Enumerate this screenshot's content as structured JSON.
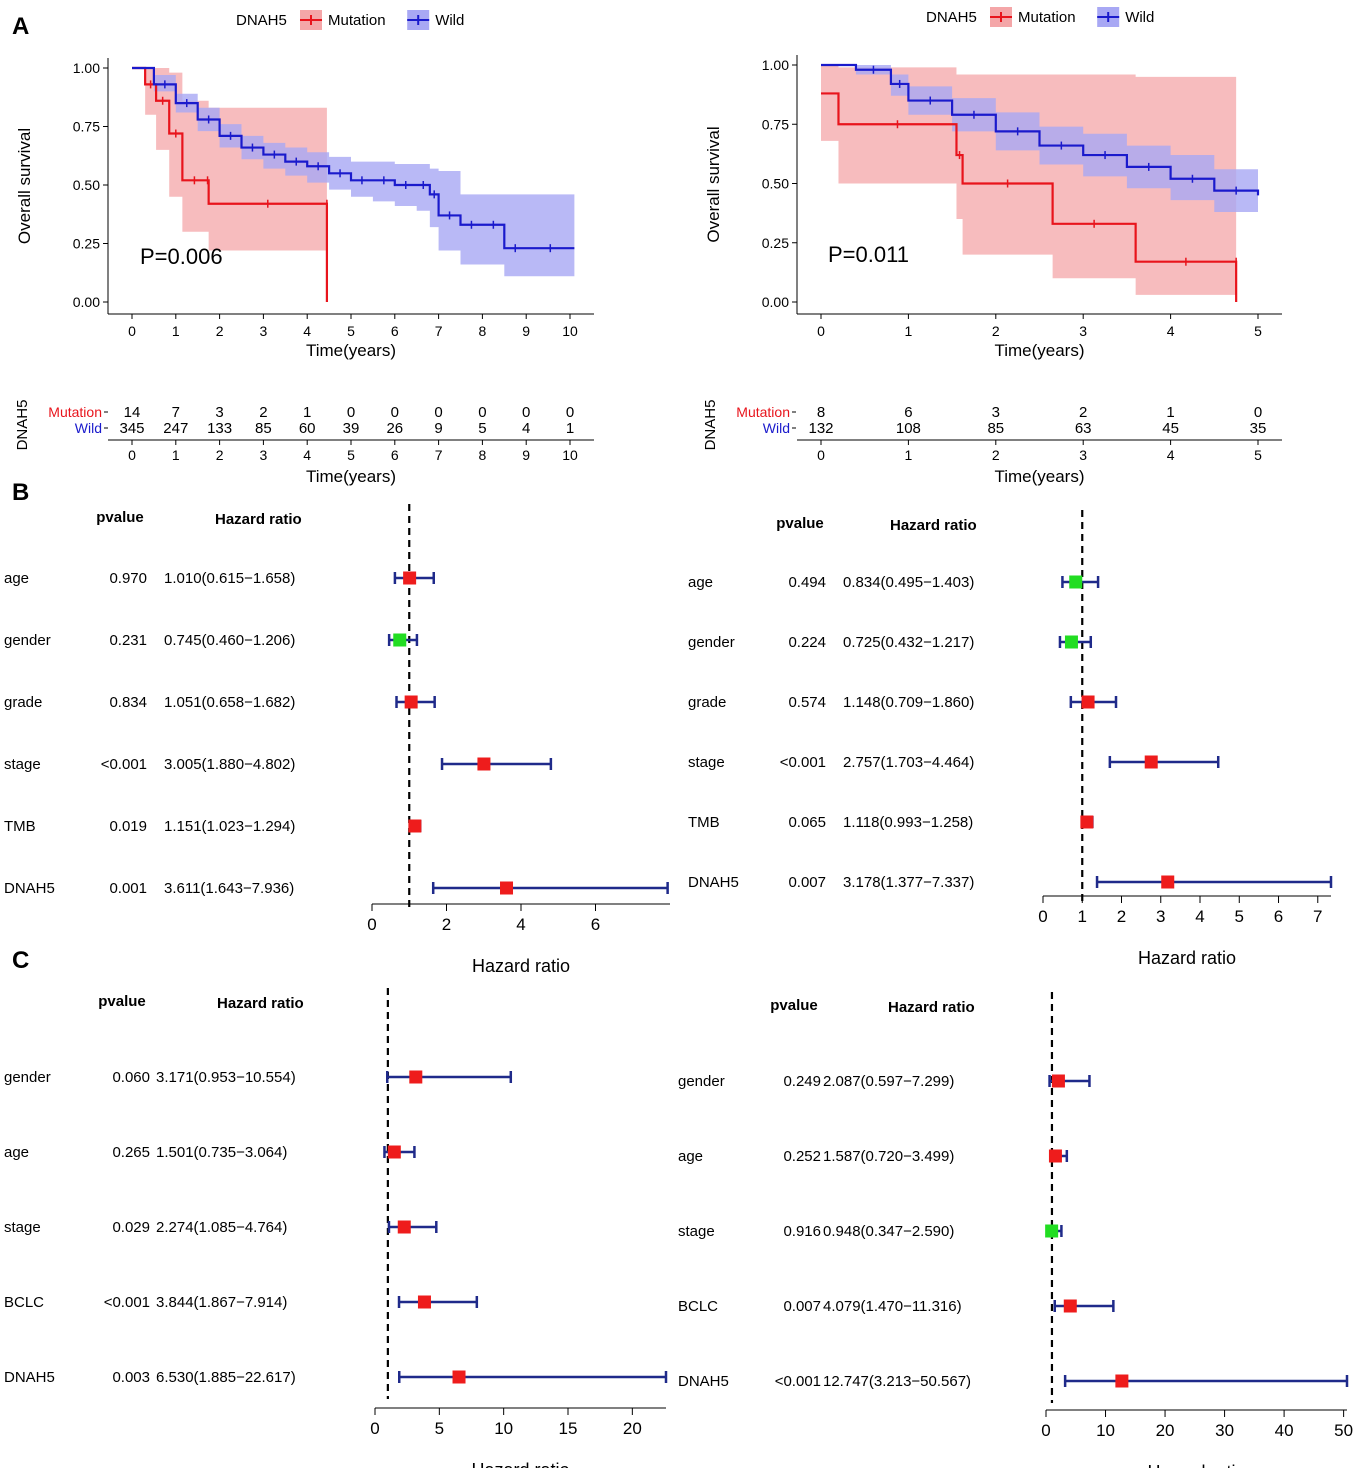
{
  "panel_labels": [
    "A",
    "B",
    "C"
  ],
  "colors": {
    "mutation": "#e8141c",
    "wild": "#1a1acc",
    "mutation_band": "#f4a6a8",
    "wild_band": "#a8a8f4",
    "forest_line": "#1f2a8a",
    "hr_high": "#ee1c1c",
    "hr_low": "#22dd22"
  },
  "chart_data": [
    {
      "type": "line",
      "id": "km_left",
      "gene": "DNAH5",
      "legend": [
        "Mutation",
        "Wild"
      ],
      "ylabel": "Overall survival",
      "xlabel": "Time(years)",
      "xlim": [
        0,
        10
      ],
      "ylim": [
        0,
        1
      ],
      "xticks": [
        "0",
        "1",
        "2",
        "3",
        "4",
        "5",
        "6",
        "7",
        "8",
        "9",
        "10"
      ],
      "yticks": [
        "0.00",
        "0.25",
        "0.50",
        "0.75",
        "1.00"
      ],
      "pvalue": "P=0.006",
      "series": [
        {
          "name": "Mutation",
          "x": [
            0,
            0.3,
            0.55,
            0.85,
            1.15,
            1.7,
            1.75,
            4.45,
            4.45
          ],
          "y": [
            1.0,
            0.93,
            0.86,
            0.72,
            0.52,
            0.52,
            0.42,
            0.42,
            0.0
          ],
          "lower": [
            1.0,
            0.8,
            0.65,
            0.45,
            0.3,
            0.3,
            0.22,
            0.22,
            0.0
          ],
          "upper": [
            1.0,
            1.0,
            1.0,
            0.98,
            0.86,
            0.86,
            0.83,
            0.83,
            0.0
          ]
        },
        {
          "name": "Wild",
          "x": [
            0,
            0.5,
            1,
            1.5,
            2,
            2.5,
            3,
            3.5,
            4,
            4.5,
            5,
            5.5,
            6,
            6.5,
            6.8,
            7,
            7.5,
            8,
            8.5,
            9,
            10.1
          ],
          "y": [
            1.0,
            0.93,
            0.85,
            0.78,
            0.71,
            0.66,
            0.63,
            0.6,
            0.58,
            0.55,
            0.52,
            0.52,
            0.5,
            0.5,
            0.46,
            0.37,
            0.33,
            0.33,
            0.23,
            0.23,
            0.23
          ],
          "lower": [
            1.0,
            0.9,
            0.81,
            0.73,
            0.66,
            0.61,
            0.57,
            0.54,
            0.51,
            0.48,
            0.45,
            0.43,
            0.41,
            0.39,
            0.32,
            0.22,
            0.16,
            0.16,
            0.11,
            0.11,
            0.11
          ],
          "upper": [
            1.0,
            0.97,
            0.89,
            0.83,
            0.76,
            0.71,
            0.68,
            0.66,
            0.64,
            0.62,
            0.6,
            0.6,
            0.59,
            0.59,
            0.57,
            0.56,
            0.46,
            0.46,
            0.46,
            0.46,
            0.46
          ]
        }
      ],
      "risk_table": {
        "title": "DNAH5",
        "rows": [
          {
            "name": "Mutation",
            "values": [
              "14",
              "7",
              "3",
              "2",
              "1",
              "0",
              "0",
              "0",
              "0",
              "0",
              "0"
            ]
          },
          {
            "name": "Wild",
            "values": [
              "345",
              "247",
              "133",
              "85",
              "60",
              "39",
              "26",
              "9",
              "5",
              "4",
              "1"
            ]
          }
        ],
        "xlabel": "Time(years)",
        "xticks": [
          "0",
          "1",
          "2",
          "3",
          "4",
          "5",
          "6",
          "7",
          "8",
          "9",
          "10"
        ]
      }
    },
    {
      "type": "line",
      "id": "km_right",
      "gene": "DNAH5",
      "legend": [
        "Mutation",
        "Wild"
      ],
      "ylabel": "Overall survival",
      "xlabel": "Time(years)",
      "xlim": [
        0,
        5
      ],
      "ylim": [
        0,
        1
      ],
      "xticks": [
        "0",
        "1",
        "2",
        "3",
        "4",
        "5"
      ],
      "yticks": [
        "0.00",
        "0.25",
        "0.50",
        "0.75",
        "1.00"
      ],
      "pvalue": "P=0.011",
      "series": [
        {
          "name": "Mutation",
          "x": [
            0,
            0.2,
            1.55,
            1.62,
            2.65,
            3.6,
            4.75,
            4.75
          ],
          "y": [
            0.88,
            0.75,
            0.62,
            0.5,
            0.33,
            0.17,
            0.17,
            0.0
          ],
          "lower": [
            0.68,
            0.5,
            0.35,
            0.2,
            0.1,
            0.03,
            0.03,
            0.0
          ],
          "upper": [
            1.0,
            0.99,
            0.96,
            0.96,
            0.96,
            0.95,
            0.95,
            0.0
          ]
        },
        {
          "name": "Wild",
          "x": [
            0,
            0.4,
            0.8,
            1,
            1.5,
            2,
            2.5,
            3,
            3.5,
            4,
            4.5,
            5
          ],
          "y": [
            1.0,
            0.98,
            0.92,
            0.85,
            0.79,
            0.72,
            0.66,
            0.62,
            0.57,
            0.52,
            0.47,
            0.45
          ],
          "lower": [
            1.0,
            0.96,
            0.87,
            0.79,
            0.72,
            0.64,
            0.58,
            0.53,
            0.48,
            0.43,
            0.38,
            0.38
          ],
          "upper": [
            1.0,
            1.0,
            0.96,
            0.91,
            0.86,
            0.8,
            0.74,
            0.71,
            0.66,
            0.62,
            0.56,
            0.56
          ]
        }
      ],
      "risk_table": {
        "title": "DNAH5",
        "rows": [
          {
            "name": "Mutation",
            "values": [
              "8",
              "6",
              "3",
              "2",
              "1",
              "0"
            ]
          },
          {
            "name": "Wild",
            "values": [
              "132",
              "108",
              "85",
              "63",
              "45",
              "35"
            ]
          }
        ],
        "xlabel": "Time(years)",
        "xticks": [
          "0",
          "1",
          "2",
          "3",
          "4",
          "5"
        ]
      }
    },
    {
      "type": "forest",
      "id": "forest_B_left",
      "header_pvalue": "pvalue",
      "header_hr": "Hazard ratio",
      "xlabel": "Hazard ratio",
      "ref": 1,
      "xlim": [
        0,
        8
      ],
      "xticks": [
        0,
        2,
        4,
        6
      ],
      "rows": [
        {
          "label": "age",
          "pvalue": "0.970",
          "hr_text": "1.010(0.615−1.658)",
          "hr": 1.01,
          "lo": 0.615,
          "hi": 1.658
        },
        {
          "label": "gender",
          "pvalue": "0.231",
          "hr_text": "0.745(0.460−1.206)",
          "hr": 0.745,
          "lo": 0.46,
          "hi": 1.206
        },
        {
          "label": "grade",
          "pvalue": "0.834",
          "hr_text": "1.051(0.658−1.682)",
          "hr": 1.051,
          "lo": 0.658,
          "hi": 1.682
        },
        {
          "label": "stage",
          "pvalue": "<0.001",
          "hr_text": "3.005(1.880−4.802)",
          "hr": 3.005,
          "lo": 1.88,
          "hi": 4.802
        },
        {
          "label": "TMB",
          "pvalue": "0.019",
          "hr_text": "1.151(1.023−1.294)",
          "hr": 1.151,
          "lo": 1.023,
          "hi": 1.294
        },
        {
          "label": "DNAH5",
          "pvalue": "0.001",
          "hr_text": "3.611(1.643−7.936)",
          "hr": 3.611,
          "lo": 1.643,
          "hi": 7.936
        }
      ]
    },
    {
      "type": "forest",
      "id": "forest_B_right",
      "header_pvalue": "pvalue",
      "header_hr": "Hazard ratio",
      "xlabel": "Hazard ratio",
      "ref": 1,
      "xlim": [
        0,
        7.337
      ],
      "xticks": [
        0,
        1,
        2,
        3,
        4,
        5,
        6,
        7
      ],
      "rows": [
        {
          "label": "age",
          "pvalue": "0.494",
          "hr_text": "0.834(0.495−1.403)",
          "hr": 0.834,
          "lo": 0.495,
          "hi": 1.403
        },
        {
          "label": "gender",
          "pvalue": "0.224",
          "hr_text": "0.725(0.432−1.217)",
          "hr": 0.725,
          "lo": 0.432,
          "hi": 1.217
        },
        {
          "label": "grade",
          "pvalue": "0.574",
          "hr_text": "1.148(0.709−1.860)",
          "hr": 1.148,
          "lo": 0.709,
          "hi": 1.86
        },
        {
          "label": "stage",
          "pvalue": "<0.001",
          "hr_text": "2.757(1.703−4.464)",
          "hr": 2.757,
          "lo": 1.703,
          "hi": 4.464
        },
        {
          "label": "TMB",
          "pvalue": "0.065",
          "hr_text": "1.118(0.993−1.258)",
          "hr": 1.118,
          "lo": 0.993,
          "hi": 1.258
        },
        {
          "label": "DNAH5",
          "pvalue": "0.007",
          "hr_text": "3.178(1.377−7.337)",
          "hr": 3.178,
          "lo": 1.377,
          "hi": 7.337
        }
      ]
    },
    {
      "type": "forest",
      "id": "forest_C_left",
      "header_pvalue": "pvalue",
      "header_hr": "Hazard ratio",
      "xlabel": "Hazard ratio",
      "ref": 1,
      "xlim": [
        0,
        22.617
      ],
      "xticks": [
        0,
        5,
        10,
        15,
        20
      ],
      "rows": [
        {
          "label": "gender",
          "pvalue": "0.060",
          "hr_text": "3.171(0.953−10.554)",
          "hr": 3.171,
          "lo": 0.953,
          "hi": 10.554
        },
        {
          "label": "age",
          "pvalue": "0.265",
          "hr_text": "1.501(0.735−3.064)",
          "hr": 1.501,
          "lo": 0.735,
          "hi": 3.064
        },
        {
          "label": "stage",
          "pvalue": "0.029",
          "hr_text": "2.274(1.085−4.764)",
          "hr": 2.274,
          "lo": 1.085,
          "hi": 4.764
        },
        {
          "label": "BCLC",
          "pvalue": "<0.001",
          "hr_text": "3.844(1.867−7.914)",
          "hr": 3.844,
          "lo": 1.867,
          "hi": 7.914
        },
        {
          "label": "DNAH5",
          "pvalue": "0.003",
          "hr_text": "6.530(1.885−22.617)",
          "hr": 6.53,
          "lo": 1.885,
          "hi": 22.617
        }
      ]
    },
    {
      "type": "forest",
      "id": "forest_C_right",
      "header_pvalue": "pvalue",
      "header_hr": "Hazard ratio",
      "xlabel": "Hazard ratio",
      "ref": 1,
      "xlim": [
        0,
        50.567
      ],
      "xticks": [
        0,
        10,
        20,
        30,
        40,
        50
      ],
      "rows": [
        {
          "label": "gender",
          "pvalue": "0.249",
          "hr_text": "2.087(0.597−7.299)",
          "hr": 2.087,
          "lo": 0.597,
          "hi": 7.299
        },
        {
          "label": "age",
          "pvalue": "0.252",
          "hr_text": "1.587(0.720−3.499)",
          "hr": 1.587,
          "lo": 0.72,
          "hi": 3.499
        },
        {
          "label": "stage",
          "pvalue": "0.916",
          "hr_text": "0.948(0.347−2.590)",
          "hr": 0.948,
          "lo": 0.347,
          "hi": 2.59
        },
        {
          "label": "BCLC",
          "pvalue": "0.007",
          "hr_text": "4.079(1.470−11.316)",
          "hr": 4.079,
          "lo": 1.47,
          "hi": 11.316
        },
        {
          "label": "DNAH5",
          "pvalue": "<0.001",
          "hr_text": "12.747(3.213−50.567)",
          "hr": 12.747,
          "lo": 3.213,
          "hi": 50.567
        }
      ]
    }
  ]
}
